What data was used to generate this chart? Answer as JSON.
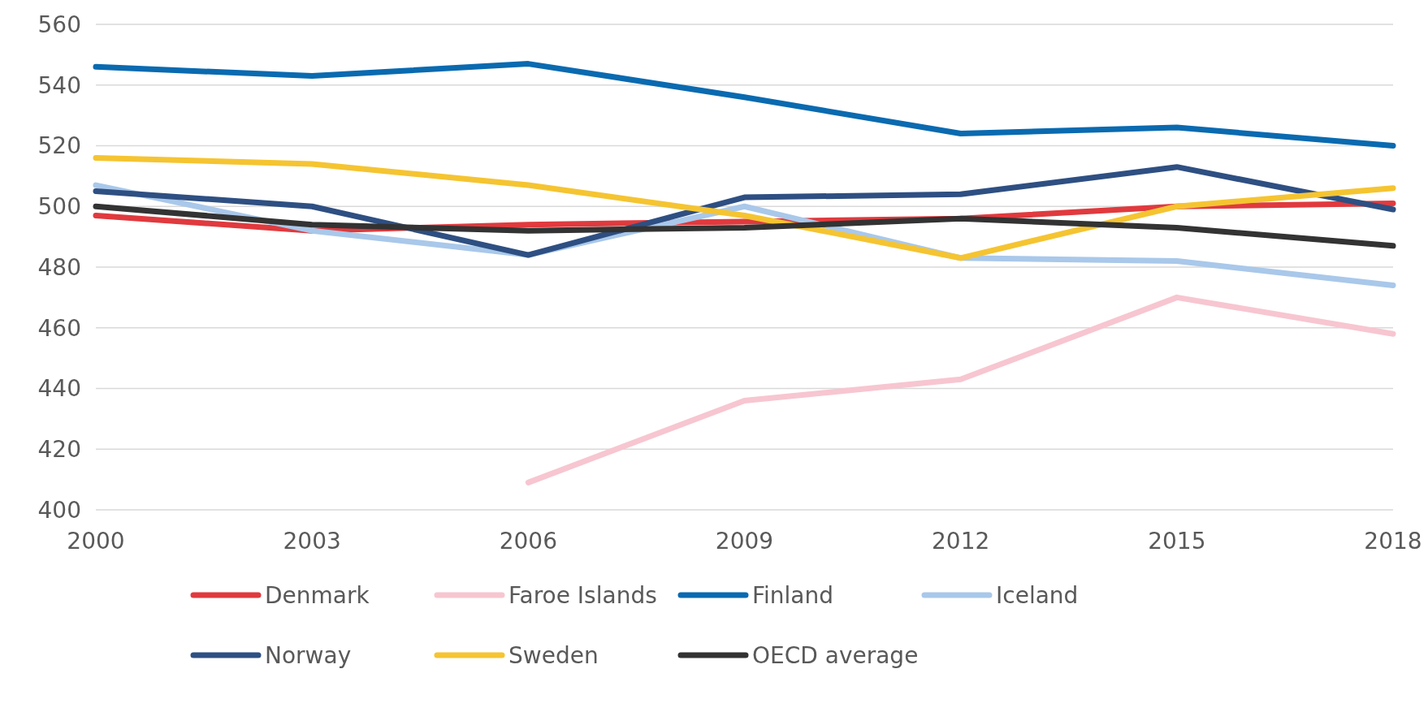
{
  "chart_data": {
    "type": "line",
    "x": [
      2000,
      2003,
      2006,
      2009,
      2012,
      2015,
      2018
    ],
    "xlim": [
      2000,
      2018
    ],
    "xticks": [
      2000,
      2003,
      2006,
      2009,
      2012,
      2015,
      2018
    ],
    "ylim": [
      400,
      560
    ],
    "yticks": [
      400,
      420,
      440,
      460,
      480,
      500,
      520,
      540,
      560
    ],
    "grid": "y",
    "legend": "bottom",
    "marker": "none",
    "line_style": "solid",
    "series": [
      {
        "name": "Denmark",
        "color": "#e03a3e",
        "values": [
          497,
          492,
          494,
          495,
          496,
          500,
          501
        ]
      },
      {
        "name": "Faroe Islands",
        "color": "#f7c6d0",
        "values": [
          null,
          null,
          409,
          436,
          443,
          470,
          458
        ]
      },
      {
        "name": "Finland",
        "color": "#0a6ab0",
        "values": [
          546,
          543,
          547,
          536,
          524,
          526,
          520
        ]
      },
      {
        "name": "Iceland",
        "color": "#a9c8ea",
        "values": [
          507,
          492,
          484,
          500,
          483,
          482,
          474
        ]
      },
      {
        "name": "Norway",
        "color": "#2e4f82",
        "values": [
          505,
          500,
          484,
          503,
          504,
          513,
          499
        ]
      },
      {
        "name": "Sweden",
        "color": "#f5c431",
        "values": [
          516,
          514,
          507,
          497,
          483,
          500,
          506
        ]
      },
      {
        "name": "OECD average",
        "color": "#333333",
        "values": [
          500,
          494,
          492,
          493,
          496,
          493,
          487
        ]
      }
    ]
  }
}
